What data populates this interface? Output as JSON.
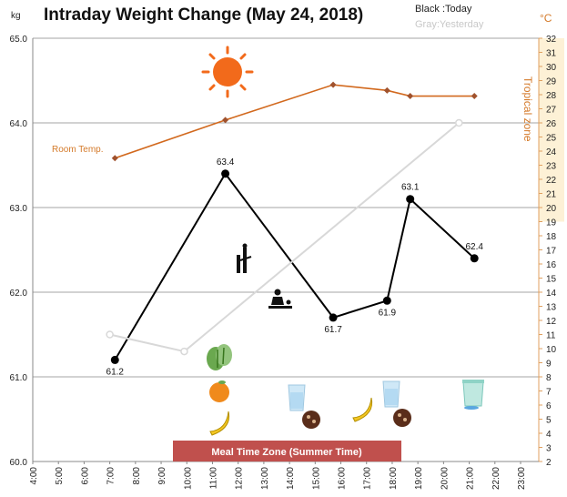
{
  "title": "Intraday Weight Change (May 24, 2018)",
  "legend": {
    "today": "Black :Today",
    "yesterday": "Gray:Yesterday"
  },
  "units": {
    "left": "kg",
    "right": "°C"
  },
  "right_axis_label": "Tropical zone",
  "room_temp_label": "Room Temp.",
  "meal_band_label": "Meal Time Zone  (Summer Time)",
  "colors": {
    "today": "#000000",
    "yesterday": "#d8d8d8",
    "room_temp": "#d2691e",
    "tropical_band": "#fdf1d6",
    "meal_band": "#c0504d",
    "sun": "#f26a1b"
  },
  "icons": [
    "sun-icon",
    "exercise-icon",
    "sitting-icon",
    "lettuce-icon",
    "orange-icon",
    "banana-icon",
    "water-glass-icon",
    "chocolate-icon",
    "drink-cup-icon"
  ],
  "chart_data": {
    "type": "line",
    "x_tick_labels": [
      "4:00",
      "5:00",
      "6:00",
      "7:00",
      "8:00",
      "9:00",
      "10:00",
      "11:00",
      "12:00",
      "13:00",
      "14:00",
      "15:00",
      "16:00",
      "17:00",
      "18:00",
      "19:00",
      "20:00",
      "21:00",
      "22:00",
      "23:00"
    ],
    "xlim": [
      4,
      23
    ],
    "y_left": {
      "label": "kg",
      "ylim": [
        60,
        65
      ],
      "ticks": [
        "60.0",
        "61.0",
        "62.0",
        "63.0",
        "64.0",
        "65.0"
      ]
    },
    "y_right": {
      "label": "°C",
      "ylim": [
        2,
        32
      ],
      "ticks": [
        "2",
        "3",
        "4",
        "5",
        "6",
        "7",
        "8",
        "9",
        "10",
        "11",
        "12",
        "13",
        "14",
        "15",
        "16",
        "17",
        "18",
        "19",
        "20",
        "21",
        "22",
        "23",
        "24",
        "25",
        "26",
        "27",
        "28",
        "29",
        "30",
        "31",
        "32"
      ]
    },
    "tropical_zone": [
      19,
      32
    ],
    "meal_zone": [
      9.5,
      18.5
    ],
    "series": [
      {
        "name": "Today",
        "axis": "left",
        "points": [
          {
            "x": 7.2,
            "y": 61.2,
            "label": "61.2"
          },
          {
            "x": 11.5,
            "y": 63.4,
            "label": "63.4"
          },
          {
            "x": 15.7,
            "y": 61.7,
            "label": "61.7"
          },
          {
            "x": 17.8,
            "y": 61.9,
            "label": "61.9"
          },
          {
            "x": 18.7,
            "y": 63.1,
            "label": "63.1"
          },
          {
            "x": 21.2,
            "y": 62.4,
            "label": "62.4"
          }
        ]
      },
      {
        "name": "Yesterday",
        "axis": "left",
        "points": [
          {
            "x": 7.0,
            "y": 61.5
          },
          {
            "x": 9.9,
            "y": 61.3
          },
          {
            "x": 20.6,
            "y": 64.0
          }
        ]
      },
      {
        "name": "Room Temp.",
        "axis": "right",
        "points": [
          {
            "x": 7.2,
            "y": 23.5
          },
          {
            "x": 11.5,
            "y": 26.2
          },
          {
            "x": 15.7,
            "y": 28.7
          },
          {
            "x": 17.8,
            "y": 28.3
          },
          {
            "x": 18.7,
            "y": 27.9
          },
          {
            "x": 21.2,
            "y": 27.9
          }
        ]
      }
    ]
  }
}
